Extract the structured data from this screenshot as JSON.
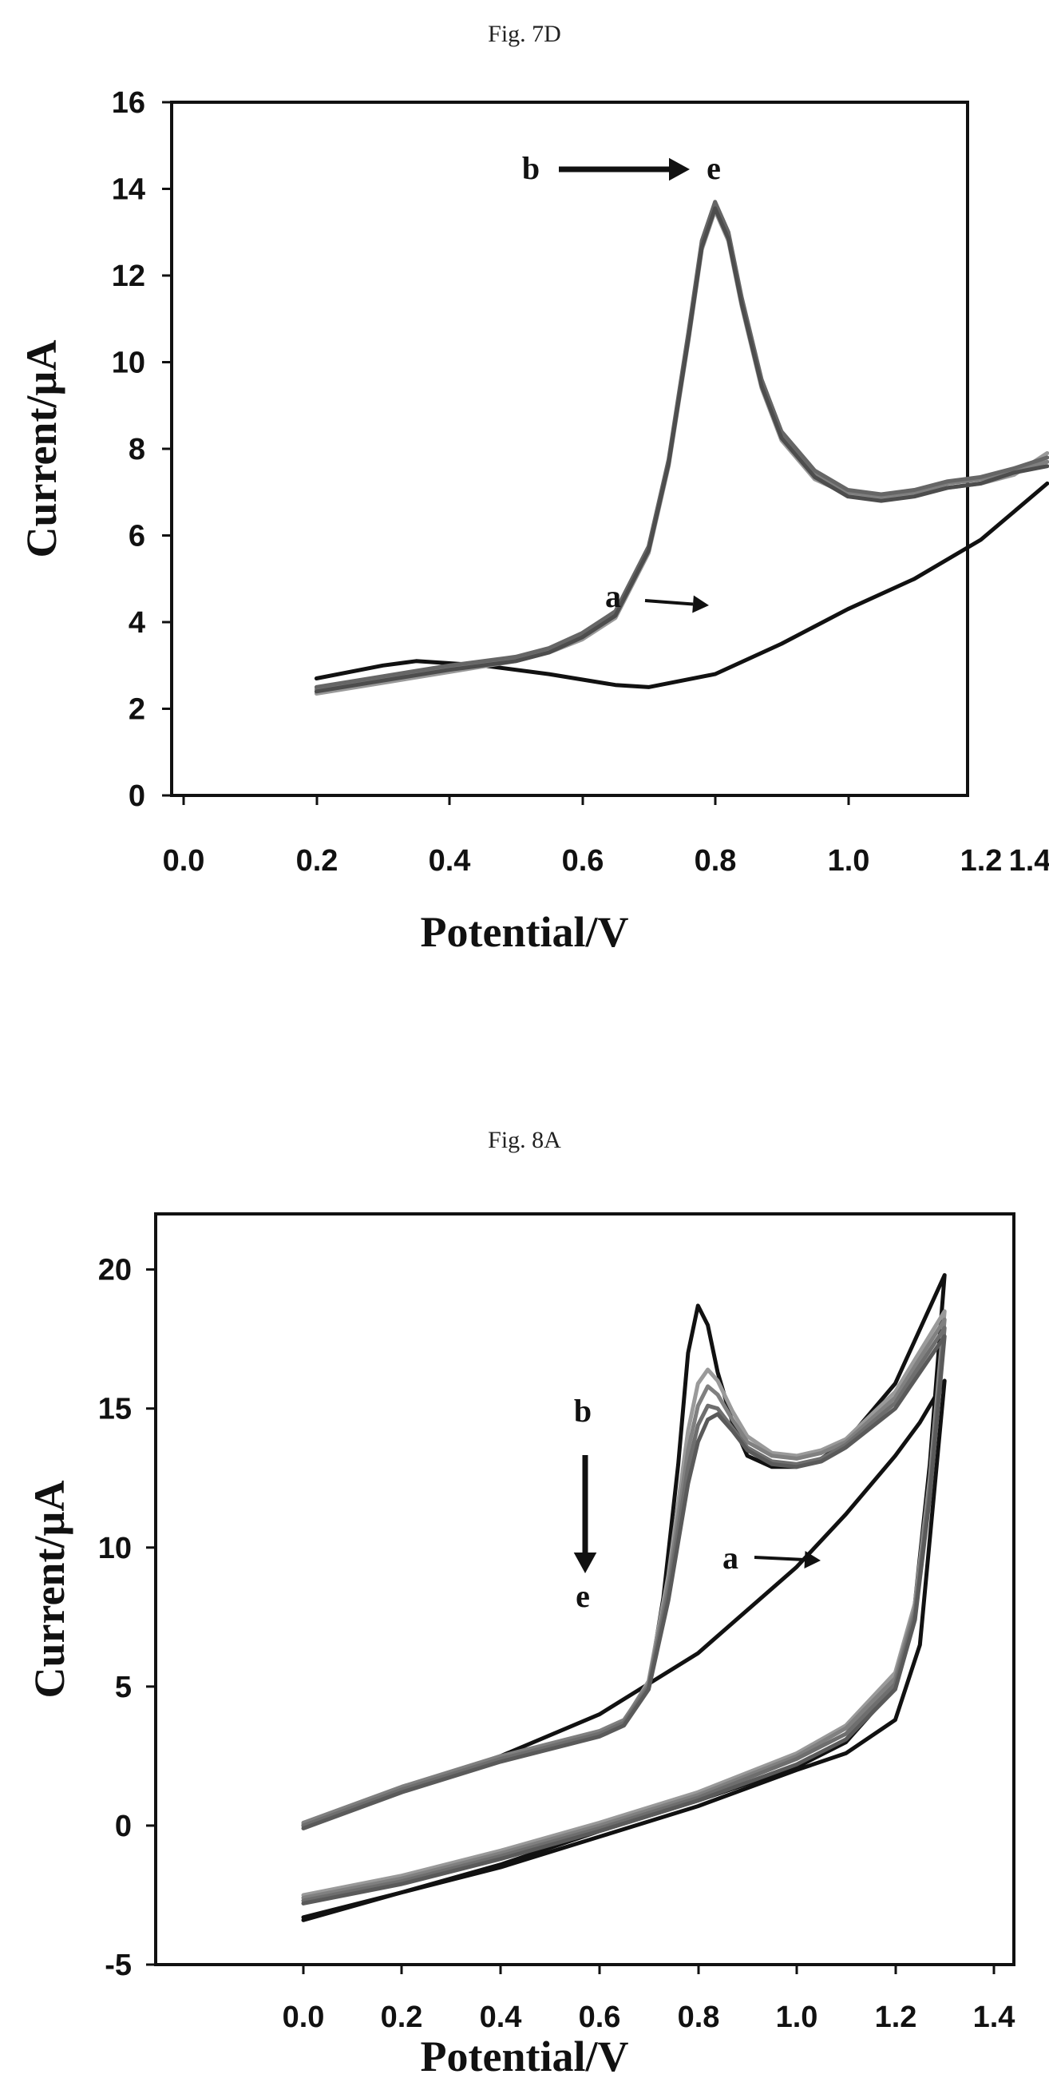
{
  "chart_data": [
    {
      "type": "line",
      "title": "Fig. 7D",
      "xlabel": "Potential/V",
      "ylabel": "Current/µA",
      "xlim": [
        0.0,
        1.4
      ],
      "ylim": [
        0,
        16
      ],
      "xticks": [
        "0.0",
        "0.2",
        "0.4",
        "0.6",
        "0.8",
        "1.0",
        "1.2",
        "1.4"
      ],
      "yticks": [
        "0",
        "2",
        "4",
        "6",
        "8",
        "10",
        "12",
        "14",
        "16"
      ],
      "grid": false,
      "annotations": [
        {
          "text": "b",
          "x": 0.11,
          "y": 14.1
        },
        {
          "text": "e",
          "x": 0.94,
          "y": 14.1
        },
        {
          "text": "a",
          "x": 0.15,
          "y": 4.3
        }
      ],
      "series": [
        {
          "color": "#111111",
          "x": [
            0.2,
            0.3,
            0.35,
            0.45,
            0.55,
            0.65,
            0.7,
            0.8,
            0.9,
            1.0,
            1.1,
            1.2,
            1.3
          ],
          "y": [
            2.7,
            3.0,
            3.1,
            3.0,
            2.8,
            2.55,
            2.5,
            2.8,
            3.5,
            4.3,
            5.0,
            5.9,
            7.2
          ]
        },
        {
          "color": "#999999",
          "x": [
            0.2,
            0.3,
            0.4,
            0.5,
            0.55,
            0.6,
            0.65,
            0.7,
            0.73,
            0.76,
            0.78,
            0.8,
            0.82,
            0.84,
            0.87,
            0.9,
            0.95,
            1.0,
            1.05,
            1.1,
            1.15,
            1.2,
            1.25,
            1.3
          ],
          "y": [
            2.35,
            2.6,
            2.85,
            3.1,
            3.3,
            3.6,
            4.1,
            5.6,
            7.6,
            10.5,
            12.6,
            13.5,
            12.8,
            11.3,
            9.4,
            8.2,
            7.3,
            6.95,
            6.85,
            6.95,
            7.1,
            7.2,
            7.4,
            7.9
          ]
        },
        {
          "color": "#7f7f7f",
          "x": [
            0.2,
            0.3,
            0.4,
            0.5,
            0.55,
            0.6,
            0.65,
            0.7,
            0.73,
            0.76,
            0.78,
            0.8,
            0.82,
            0.84,
            0.87,
            0.9,
            0.95,
            1.0,
            1.05,
            1.1,
            1.15,
            1.2,
            1.25,
            1.3
          ],
          "y": [
            2.45,
            2.7,
            2.95,
            3.15,
            3.35,
            3.7,
            4.2,
            5.7,
            7.7,
            10.6,
            12.7,
            13.6,
            12.9,
            11.4,
            9.5,
            8.3,
            7.4,
            7.0,
            6.9,
            7.0,
            7.2,
            7.3,
            7.5,
            7.7
          ]
        },
        {
          "color": "#666666",
          "x": [
            0.2,
            0.3,
            0.4,
            0.5,
            0.55,
            0.6,
            0.65,
            0.7,
            0.73,
            0.76,
            0.78,
            0.8,
            0.82,
            0.84,
            0.87,
            0.9,
            0.95,
            1.0,
            1.05,
            1.1,
            1.15,
            1.2,
            1.25,
            1.3
          ],
          "y": [
            2.5,
            2.75,
            3.0,
            3.2,
            3.4,
            3.75,
            4.25,
            5.75,
            7.75,
            10.7,
            12.8,
            13.7,
            13.0,
            11.5,
            9.6,
            8.4,
            7.5,
            7.05,
            6.95,
            7.05,
            7.25,
            7.35,
            7.55,
            7.8
          ]
        },
        {
          "color": "#4d4d4d",
          "x": [
            0.2,
            0.3,
            0.4,
            0.5,
            0.55,
            0.6,
            0.65,
            0.7,
            0.73,
            0.76,
            0.78,
            0.8,
            0.82,
            0.84,
            0.87,
            0.9,
            0.95,
            1.0,
            1.05,
            1.1,
            1.15,
            1.2,
            1.25,
            1.3
          ],
          "y": [
            2.4,
            2.65,
            2.9,
            3.1,
            3.3,
            3.65,
            4.15,
            5.65,
            7.65,
            10.55,
            12.65,
            13.55,
            12.85,
            11.35,
            9.45,
            8.25,
            7.35,
            6.9,
            6.8,
            6.9,
            7.1,
            7.2,
            7.45,
            7.6
          ]
        }
      ]
    },
    {
      "type": "line",
      "title": "Fig. 8A",
      "xlabel": "Potential/V",
      "ylabel": "Current/µA",
      "xlim": [
        -0.2,
        1.4
      ],
      "ylim": [
        -5,
        22
      ],
      "xticks": [
        "0.0",
        "0.2",
        "0.4",
        "0.6",
        "0.8",
        "1.0",
        "1.2",
        "1.4"
      ],
      "yticks": [
        "-5",
        "0",
        "5",
        "10",
        "15",
        "20"
      ],
      "grid": false,
      "annotations": [
        {
          "text": "b",
          "x": 0.11,
          "y": 14.9
        },
        {
          "text": "e",
          "x": 0.11,
          "y": 7.2
        },
        {
          "text": "a",
          "x": 0.85,
          "y": 8.7
        }
      ],
      "series": [
        {
          "color": "#111111",
          "x": [
            0.0,
            0.2,
            0.4,
            0.6,
            0.8,
            1.0,
            1.1,
            1.2,
            1.25,
            1.3,
            1.3,
            1.25,
            1.2,
            1.1,
            1.0,
            0.8,
            0.6,
            0.4,
            0.2,
            0.0
          ],
          "y": [
            0.0,
            1.3,
            2.5,
            4.0,
            6.2,
            9.3,
            11.2,
            13.3,
            14.5,
            16.0,
            16.0,
            6.5,
            3.8,
            2.6,
            2.0,
            0.7,
            -0.4,
            -1.5,
            -2.4,
            -3.3
          ]
        },
        {
          "color": "#111111",
          "x": [
            0.0,
            0.2,
            0.4,
            0.6,
            0.65,
            0.7,
            0.73,
            0.76,
            0.78,
            0.8,
            0.82,
            0.84,
            0.87,
            0.9,
            0.95,
            1.0,
            1.05,
            1.1,
            1.2,
            1.3,
            1.3,
            1.27,
            1.24,
            1.2,
            1.1,
            1.0,
            0.8,
            0.6,
            0.4,
            0.2,
            0.0
          ],
          "y": [
            0.0,
            1.3,
            2.4,
            3.3,
            3.7,
            5.0,
            8.2,
            13.0,
            17.0,
            18.7,
            18.0,
            16.3,
            14.5,
            13.3,
            12.9,
            12.9,
            13.2,
            13.8,
            15.9,
            19.8,
            19.8,
            13.0,
            8.0,
            5.0,
            3.0,
            2.1,
            0.9,
            -0.2,
            -1.4,
            -2.4,
            -3.4
          ]
        },
        {
          "color": "#9a9a9a",
          "x": [
            0.0,
            0.2,
            0.4,
            0.6,
            0.65,
            0.7,
            0.74,
            0.78,
            0.8,
            0.82,
            0.84,
            0.87,
            0.9,
            0.95,
            1.0,
            1.05,
            1.1,
            1.2,
            1.3,
            1.3,
            1.27,
            1.24,
            1.2,
            1.1,
            1.0,
            0.8,
            0.6,
            0.4,
            0.2,
            0.0
          ],
          "y": [
            0.05,
            1.35,
            2.45,
            3.35,
            3.75,
            5.2,
            9.0,
            14.2,
            15.9,
            16.4,
            16.0,
            14.9,
            14.0,
            13.4,
            13.3,
            13.5,
            13.9,
            15.6,
            18.5,
            18.5,
            12.5,
            8.0,
            5.5,
            3.6,
            2.6,
            1.2,
            0.1,
            -0.9,
            -1.8,
            -2.5
          ]
        },
        {
          "color": "#808080",
          "x": [
            0.0,
            0.2,
            0.4,
            0.6,
            0.65,
            0.7,
            0.74,
            0.78,
            0.8,
            0.82,
            0.84,
            0.87,
            0.9,
            0.95,
            1.0,
            1.05,
            1.1,
            1.2,
            1.3,
            1.3,
            1.27,
            1.24,
            1.2,
            1.1,
            1.0,
            0.8,
            0.6,
            0.4,
            0.2,
            0.0
          ],
          "y": [
            0.1,
            1.4,
            2.5,
            3.4,
            3.8,
            5.1,
            8.7,
            13.5,
            15.1,
            15.8,
            15.5,
            14.6,
            13.8,
            13.3,
            13.2,
            13.4,
            13.8,
            15.4,
            18.2,
            18.2,
            12.3,
            7.8,
            5.3,
            3.5,
            2.5,
            1.1,
            0.0,
            -1.0,
            -1.9,
            -2.6
          ]
        },
        {
          "color": "#6e6e6e",
          "x": [
            0.0,
            0.2,
            0.4,
            0.6,
            0.65,
            0.7,
            0.74,
            0.78,
            0.8,
            0.82,
            0.84,
            0.87,
            0.9,
            0.95,
            1.0,
            1.05,
            1.1,
            1.2,
            1.3,
            1.3,
            1.27,
            1.24,
            1.2,
            1.1,
            1.0,
            0.8,
            0.6,
            0.4,
            0.2,
            0.0
          ],
          "y": [
            0.0,
            1.3,
            2.4,
            3.3,
            3.7,
            5.0,
            8.4,
            12.9,
            14.4,
            15.1,
            15.0,
            14.3,
            13.6,
            13.1,
            13.0,
            13.2,
            13.7,
            15.2,
            17.9,
            17.9,
            12.0,
            7.6,
            5.1,
            3.3,
            2.4,
            1.0,
            -0.1,
            -1.1,
            -2.0,
            -2.7
          ]
        },
        {
          "color": "#5a5a5a",
          "x": [
            0.0,
            0.2,
            0.4,
            0.6,
            0.65,
            0.7,
            0.74,
            0.78,
            0.8,
            0.82,
            0.84,
            0.87,
            0.9,
            0.95,
            1.0,
            1.05,
            1.1,
            1.2,
            1.3,
            1.3,
            1.27,
            1.24,
            1.2,
            1.1,
            1.0,
            0.8,
            0.6,
            0.4,
            0.2,
            0.0
          ],
          "y": [
            -0.1,
            1.2,
            2.3,
            3.2,
            3.6,
            4.9,
            8.1,
            12.3,
            13.8,
            14.6,
            14.8,
            14.2,
            13.5,
            13.0,
            12.9,
            13.1,
            13.6,
            15.0,
            17.6,
            17.6,
            11.8,
            7.4,
            4.9,
            3.1,
            2.2,
            0.9,
            -0.2,
            -1.2,
            -2.1,
            -2.8
          ]
        }
      ]
    }
  ]
}
